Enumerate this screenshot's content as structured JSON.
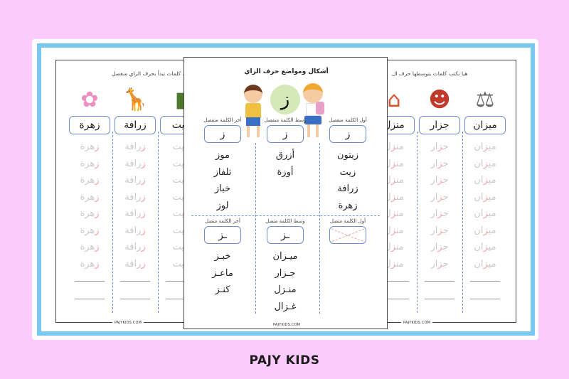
{
  "brand": "PAJY KIDS",
  "site": "PAJYKIDS.COM",
  "colors": {
    "background": "#fccbfd",
    "frame": "#78c8f0",
    "highlight": "#e0262b",
    "box_border": "#6d8fd0",
    "letter_circle": "#d4e8b8"
  },
  "left_sheet": {
    "instruction": "، كلمات تبدأ بحرف الزاي منفصل",
    "columns": [
      {
        "word": "زهرة",
        "image": "flower-icon"
      },
      {
        "word": "زرافة",
        "image": "giraffe-icon"
      },
      {
        "word": "زيت",
        "image": "oil-bottle-icon"
      }
    ],
    "trace_rows": 8,
    "blank_rows": 2
  },
  "right_sheet": {
    "instruction": "هيا نكتب كلمات يتوسطها حرف ال",
    "columns": [
      {
        "word": "ميزان",
        "image": "scale-icon"
      },
      {
        "word": "جزار",
        "image": "butcher-icon"
      },
      {
        "word": "منزل",
        "image": "house-icon"
      }
    ],
    "trace_rows": 8,
    "blank_rows": 2
  },
  "center_sheet": {
    "title": "أشكال ومواضع حرف الزاي",
    "letter": "ز",
    "sections": [
      {
        "columns": [
          {
            "label": "أول الكلمة منفصل",
            "form": "ز",
            "words": [
              "زيتون",
              "زيت",
              "زرافة",
              "زهرة"
            ]
          },
          {
            "label": "وسط الكلمة منفصل",
            "form": "ز",
            "words": [
              "أزرق",
              "أوزة"
            ]
          },
          {
            "label": "أخر الكلمة منفصل",
            "form": "ز",
            "words": [
              "موز",
              "تلفاز",
              "خباز",
              "لوز"
            ]
          }
        ]
      },
      {
        "columns": [
          {
            "label": "أول الكلمة متصل",
            "form": "",
            "crossed": true,
            "words": []
          },
          {
            "label": "وسط الكلمة متصل",
            "form": "ـز",
            "words": [
              "ميـزان",
              "جـزار",
              "منـزل",
              "غـزال"
            ]
          },
          {
            "label": "أخر الكلمة متصل",
            "form": "ـز",
            "words": [
              "خبـز",
              "ماعـز",
              "كنـز"
            ]
          }
        ]
      }
    ]
  }
}
